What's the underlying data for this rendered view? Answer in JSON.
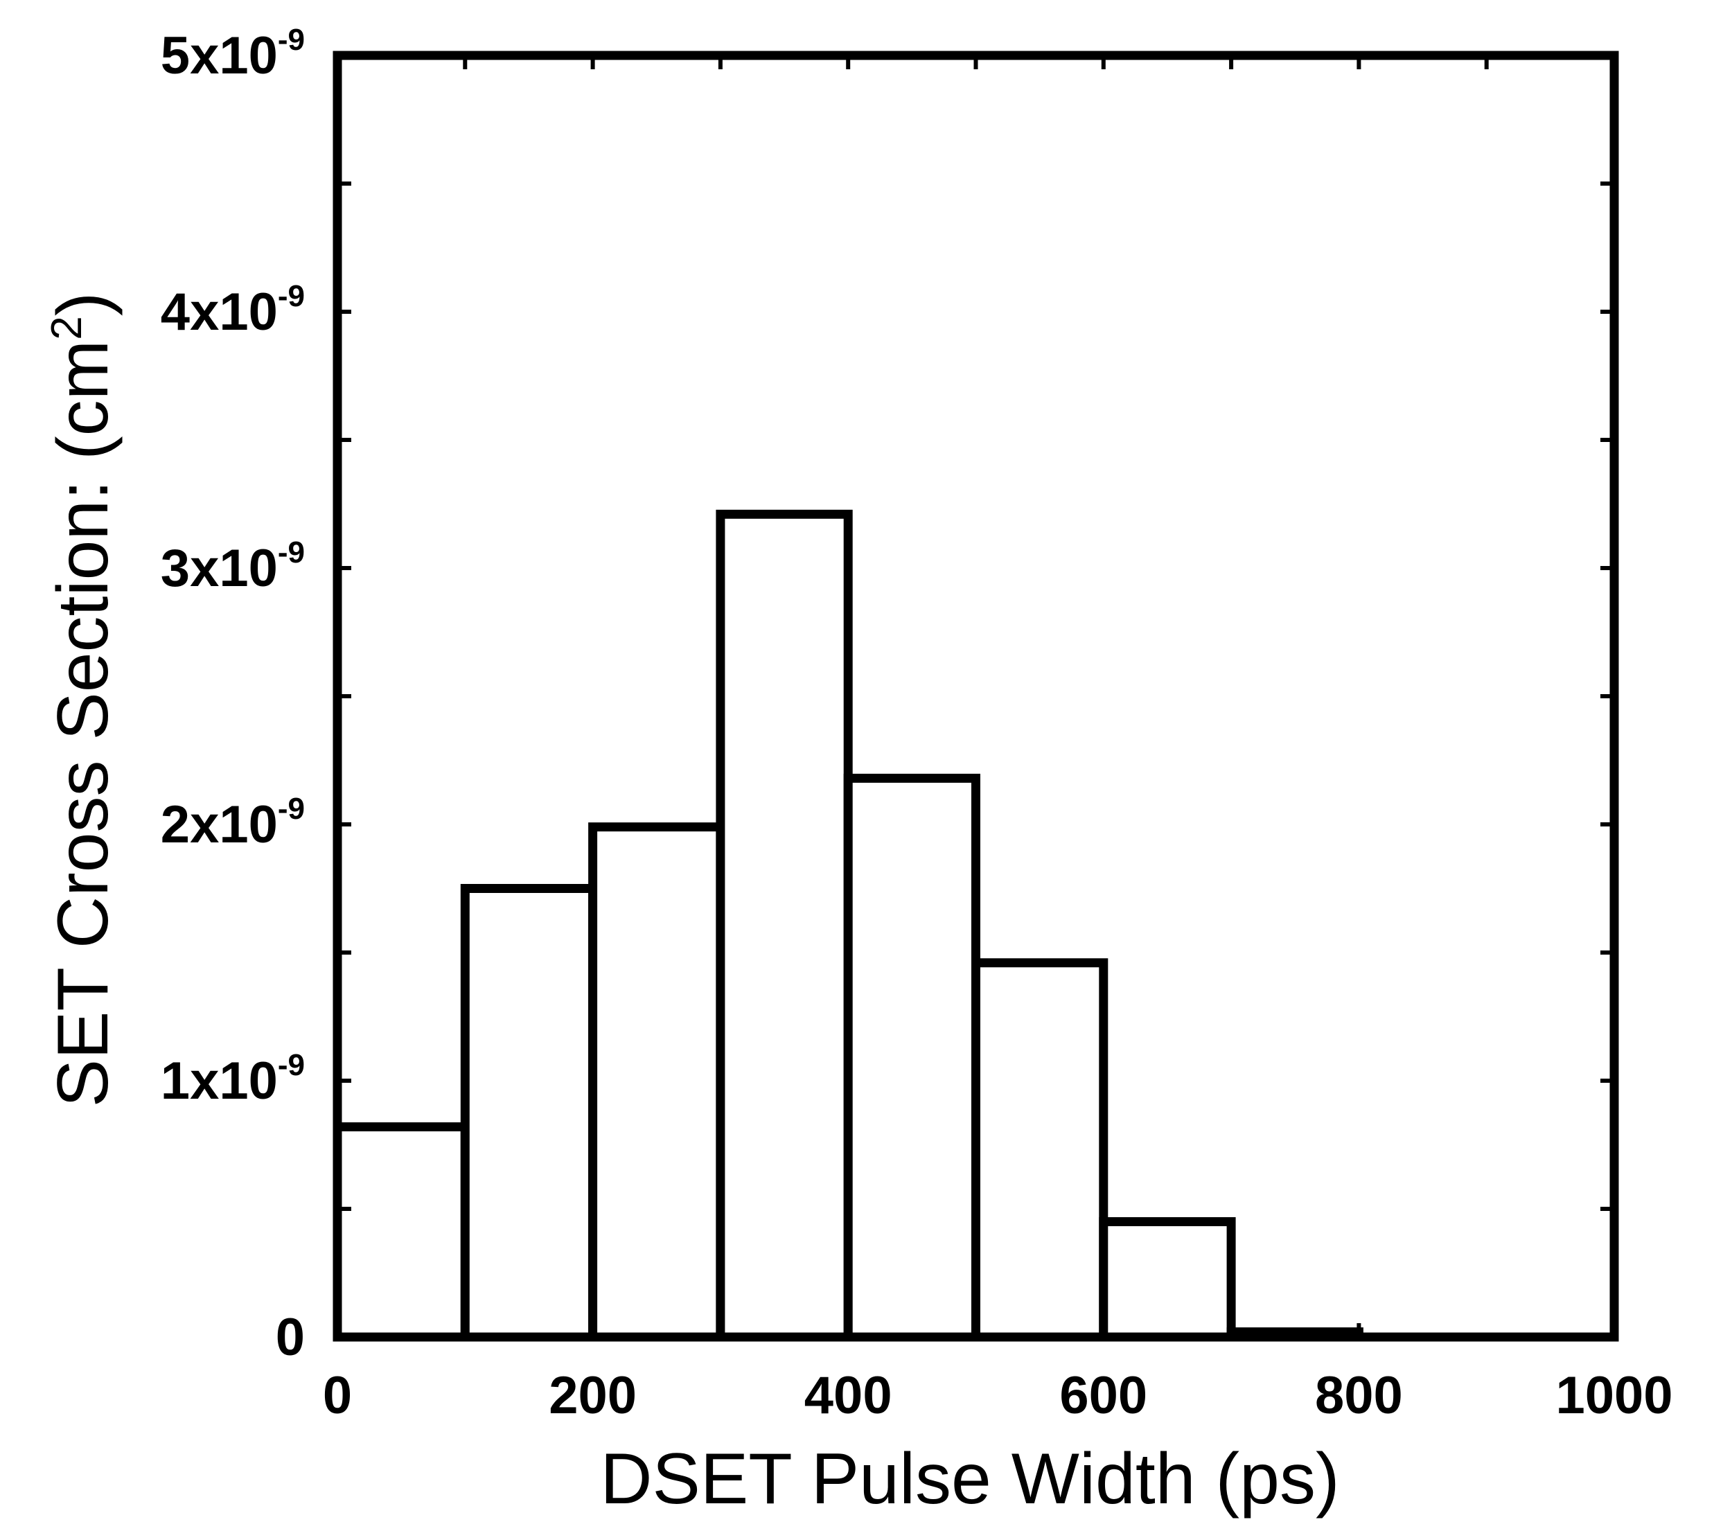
{
  "chart_data": {
    "type": "bar",
    "title": "",
    "xlabel": "DSET Pulse Width  (ps)",
    "ylabel": {
      "text": "SET Cross Section: (cm",
      "superscript": "2",
      "suffix": ")"
    },
    "xlim": [
      0,
      1000
    ],
    "ylim": [
      0,
      5e-09
    ],
    "grid": false,
    "legend": "none",
    "x_ticks": [
      {
        "value": 0,
        "label": "0"
      },
      {
        "value": 200,
        "label": "200"
      },
      {
        "value": 400,
        "label": "400"
      },
      {
        "value": 600,
        "label": "600"
      },
      {
        "value": 800,
        "label": "800"
      },
      {
        "value": 1000,
        "label": "1000"
      }
    ],
    "y_ticks": [
      {
        "value": 0,
        "mantissa": "0",
        "exponent": ""
      },
      {
        "value": 1e-09,
        "mantissa": "1x10",
        "exponent": "-9"
      },
      {
        "value": 2e-09,
        "mantissa": "2x10",
        "exponent": "-9"
      },
      {
        "value": 3e-09,
        "mantissa": "3x10",
        "exponent": "-9"
      },
      {
        "value": 4e-09,
        "mantissa": "4x10",
        "exponent": "-9"
      },
      {
        "value": 5e-09,
        "mantissa": "5x10",
        "exponent": "-9"
      }
    ],
    "bins": [
      {
        "x0": 0,
        "x1": 100,
        "value": 8.2e-10
      },
      {
        "x0": 100,
        "x1": 200,
        "value": 1.75e-09
      },
      {
        "x0": 200,
        "x1": 300,
        "value": 1.99e-09
      },
      {
        "x0": 300,
        "x1": 400,
        "value": 3.21e-09
      },
      {
        "x0": 400,
        "x1": 500,
        "value": 2.18e-09
      },
      {
        "x0": 500,
        "x1": 600,
        "value": 1.46e-09
      },
      {
        "x0": 600,
        "x1": 700,
        "value": 4.5e-10
      },
      {
        "x0": 700,
        "x1": 800,
        "value": 2e-11
      }
    ],
    "colors": {
      "stroke": "#000000",
      "fill": "#ffffff"
    }
  }
}
